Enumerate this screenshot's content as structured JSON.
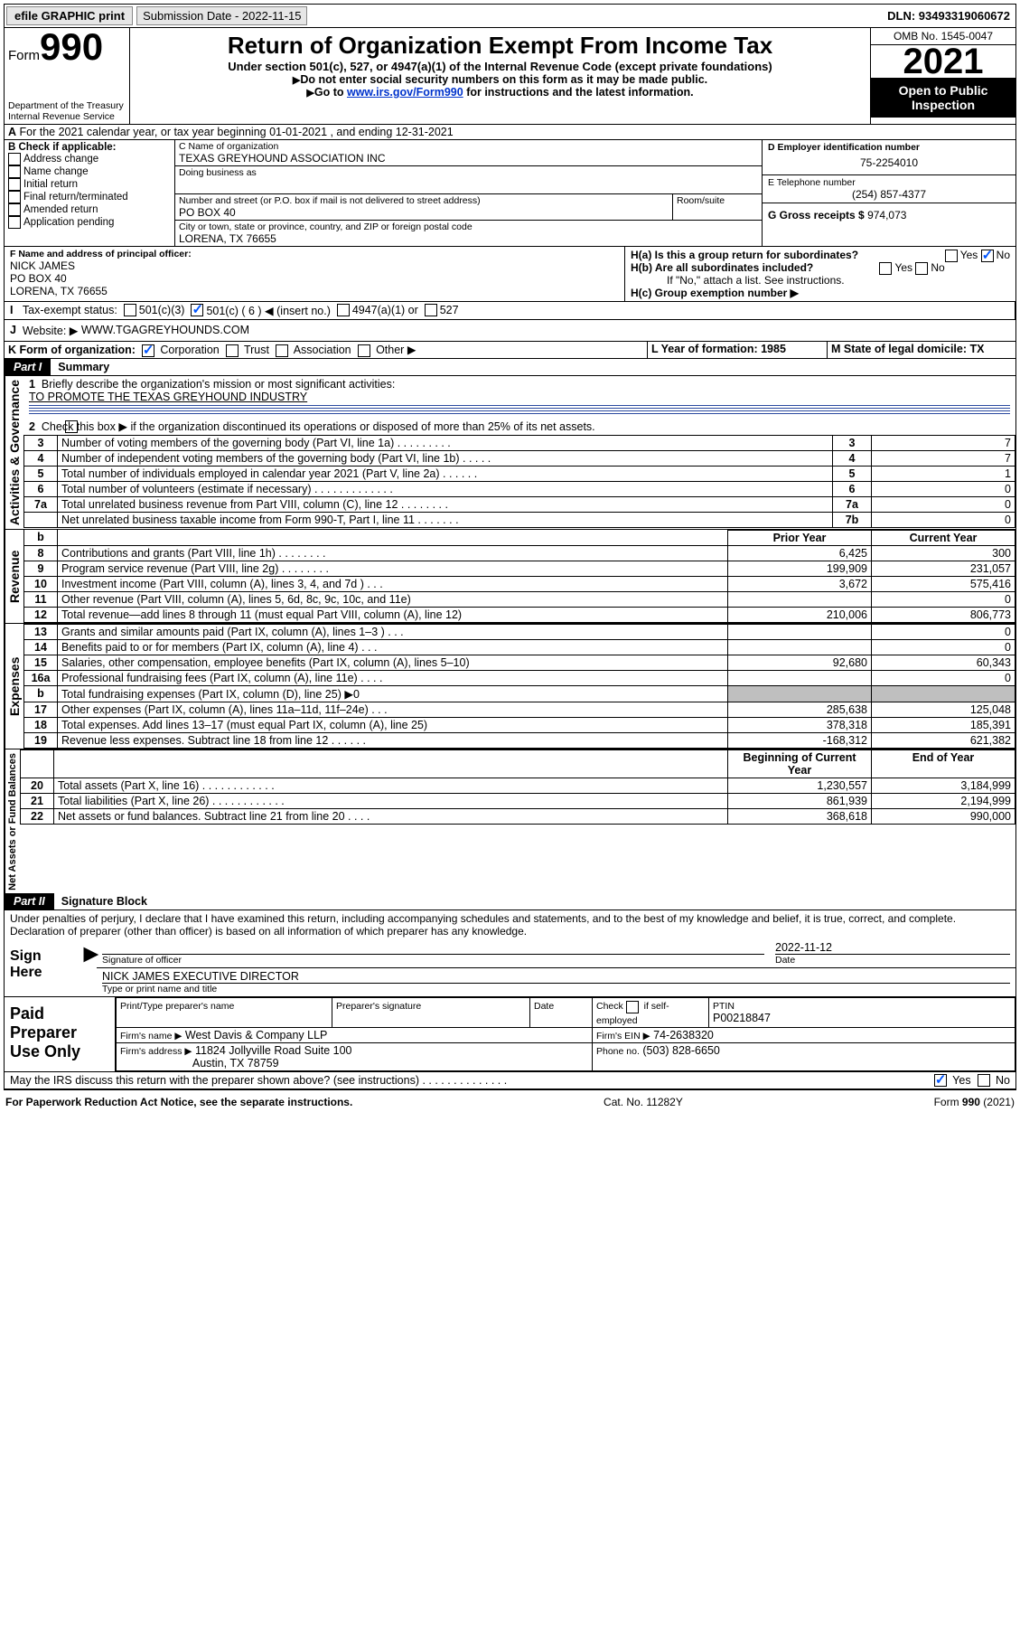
{
  "topbar": {
    "efile": "efile GRAPHIC print",
    "subdate_lbl": "Submission Date - 2022-11-15",
    "dln": "DLN: 93493319060672"
  },
  "head": {
    "form": "Form",
    "num": "990",
    "title": "Return of Organization Exempt From Income Tax",
    "sub": "Under section 501(c), 527, or 4947(a)(1) of the Internal Revenue Code (except private foundations)",
    "note1": "Do not enter social security numbers on this form as it may be made public.",
    "note2_a": "Go to ",
    "note2_link": "www.irs.gov/Form990",
    "note2_b": " for instructions and the latest information.",
    "dept": "Department of the Treasury",
    "irs": "Internal Revenue Service",
    "omb": "OMB No. 1545-0047",
    "year": "2021",
    "open": "Open to Public Inspection"
  },
  "A": {
    "line": "For the 2021 calendar year, or tax year beginning 01-01-2021    , and ending 12-31-2021"
  },
  "B": {
    "hdr": "B Check if applicable:",
    "items": [
      "Address change",
      "Name change",
      "Initial return",
      "Final return/terminated",
      "Amended return",
      "Application pending"
    ]
  },
  "C": {
    "name_lbl": "C Name of organization",
    "name": "TEXAS GREYHOUND ASSOCIATION INC",
    "dba_lbl": "Doing business as",
    "dba": "",
    "addr_lbl": "Number and street (or P.O. box if mail is not delivered to street address)",
    "room_lbl": "Room/suite",
    "addr": "PO BOX 40",
    "city_lbl": "City or town, state or province, country, and ZIP or foreign postal code",
    "city": "LORENA, TX  76655"
  },
  "D": {
    "lbl": "D Employer identification number",
    "val": "75-2254010"
  },
  "E": {
    "lbl": "E Telephone number",
    "val": "(254) 857-4377"
  },
  "G": {
    "lbl": "G Gross receipts $",
    "val": "974,073"
  },
  "F": {
    "lbl": "F  Name and address of principal officer:",
    "name": "NICK JAMES",
    "addr1": "PO BOX 40",
    "addr2": "LORENA, TX  76655"
  },
  "H": {
    "a": "H(a)  Is this a group return for subordinates?",
    "b": "H(b)  Are all subordinates included?",
    "bnote": "If \"No,\" attach a list. See instructions.",
    "c": "H(c)  Group exemption number ▶",
    "yes": "Yes",
    "no": "No"
  },
  "I": {
    "lbl": "Tax-exempt status:",
    "opts": [
      "501(c)(3)",
      "501(c) ( 6 ) ◀ (insert no.)",
      "4947(a)(1) or",
      "527"
    ]
  },
  "J": {
    "lbl": "Website: ▶",
    "val": "WWW.TGAGREYHOUNDS.COM"
  },
  "K": {
    "lbl": "K Form of organization:",
    "opts": [
      "Corporation",
      "Trust",
      "Association",
      "Other ▶"
    ]
  },
  "L": {
    "lbl": "L Year of formation: 1985"
  },
  "M": {
    "lbl": "M State of legal domicile: TX"
  },
  "part1": {
    "tab": "Part I",
    "title": "Summary"
  },
  "q1": {
    "lbl": "Briefly describe the organization's mission or most significant activities:",
    "val": "TO PROMOTE THE TEXAS GREYHOUND INDUSTRY"
  },
  "q2": "Check this box ▶          if the organization discontinued its operations or disposed of more than 25% of its net assets.",
  "govlines": [
    {
      "n": "3",
      "t": "Number of voting members of the governing body (Part VI, line 1a)   .    .    .    .    .    .    .    .    .",
      "k": "3",
      "v": "7"
    },
    {
      "n": "4",
      "t": "Number of independent voting members of the governing body (Part VI, line 1b)    .    .    .    .    .",
      "k": "4",
      "v": "7"
    },
    {
      "n": "5",
      "t": "Total number of individuals employed in calendar year 2021 (Part V, line 2a)   .    .    .    .    .    .",
      "k": "5",
      "v": "1"
    },
    {
      "n": "6",
      "t": "Total number of volunteers (estimate if necessary)   .    .    .    .    .    .    .    .    .    .    .    .    .",
      "k": "6",
      "v": "0"
    },
    {
      "n": "7a",
      "t": "Total unrelated business revenue from Part VIII, column (C), line 12   .    .    .    .    .    .    .    .",
      "k": "7a",
      "v": "0"
    },
    {
      "n": "",
      "t": "Net unrelated business taxable income from Form 990-T, Part I, line 11   .    .    .    .    .    .    .",
      "k": "7b",
      "v": "0"
    }
  ],
  "colhdr": {
    "prior": "Prior Year",
    "curr": "Current Year"
  },
  "revenue": [
    {
      "n": "8",
      "t": "Contributions and grants (Part VIII, line 1h)    .    .    .    .    .    .    .    .",
      "p": "6,425",
      "c": "300"
    },
    {
      "n": "9",
      "t": "Program service revenue (Part VIII, line 2g)   .    .    .    .    .    .    .    .",
      "p": "199,909",
      "c": "231,057"
    },
    {
      "n": "10",
      "t": "Investment income (Part VIII, column (A), lines 3, 4, and 7d )   .    .    .",
      "p": "3,672",
      "c": "575,416"
    },
    {
      "n": "11",
      "t": "Other revenue (Part VIII, column (A), lines 5, 6d, 8c, 9c, 10c, and 11e)",
      "p": "",
      "c": "0"
    },
    {
      "n": "12",
      "t": "Total revenue—add lines 8 through 11 (must equal Part VIII, column (A), line 12)",
      "p": "210,006",
      "c": "806,773"
    }
  ],
  "expenses": [
    {
      "n": "13",
      "t": "Grants and similar amounts paid (Part IX, column (A), lines 1–3 )   .    .    .",
      "p": "",
      "c": "0"
    },
    {
      "n": "14",
      "t": "Benefits paid to or for members (Part IX, column (A), line 4)   .    .    .",
      "p": "",
      "c": "0"
    },
    {
      "n": "15",
      "t": "Salaries, other compensation, employee benefits (Part IX, column (A), lines 5–10)",
      "p": "92,680",
      "c": "60,343"
    },
    {
      "n": "16a",
      "t": "Professional fundraising fees (Part IX, column (A), line 11e)   .    .    .    .",
      "p": "",
      "c": "0"
    },
    {
      "n": "b",
      "t": "Total fundraising expenses (Part IX, column (D), line 25) ▶0",
      "p": "GREY",
      "c": "GREY"
    },
    {
      "n": "17",
      "t": "Other expenses (Part IX, column (A), lines 11a–11d, 11f–24e)   .    .    .",
      "p": "285,638",
      "c": "125,048"
    },
    {
      "n": "18",
      "t": "Total expenses. Add lines 13–17 (must equal Part IX, column (A), line 25)",
      "p": "378,318",
      "c": "185,391"
    },
    {
      "n": "19",
      "t": "Revenue less expenses. Subtract line 18 from line 12   .    .    .    .    .    .",
      "p": "-168,312",
      "c": "621,382"
    }
  ],
  "netcol": {
    "beg": "Beginning of Current Year",
    "end": "End of Year"
  },
  "net": [
    {
      "n": "20",
      "t": "Total assets (Part X, line 16)   .    .    .    .    .    .    .    .    .    .    .    .",
      "p": "1,230,557",
      "c": "3,184,999"
    },
    {
      "n": "21",
      "t": "Total liabilities (Part X, line 26)  .    .    .    .    .    .    .    .    .    .    .    .",
      "p": "861,939",
      "c": "2,194,999"
    },
    {
      "n": "22",
      "t": "Net assets or fund balances. Subtract line 21 from line 20   .    .    .    .",
      "p": "368,618",
      "c": "990,000"
    }
  ],
  "part2": {
    "tab": "Part II",
    "title": "Signature Block"
  },
  "penalty": "Under penalties of perjury, I declare that I have examined this return, including accompanying schedules and statements, and to the best of my knowledge and belief, it is true, correct, and complete. Declaration of preparer (other than officer) is based on all information of which preparer has any knowledge.",
  "sign": {
    "here": "Sign Here",
    "sigoff": "Signature of officer",
    "date": "Date",
    "datev": "2022-11-12",
    "name": "NICK JAMES  EXECUTIVE DIRECTOR",
    "namelbl": "Type or print name and title"
  },
  "paid": {
    "hdr": "Paid Preparer Use Only",
    "c1": "Print/Type preparer's name",
    "c2": "Preparer's signature",
    "c3": "Date",
    "c4a": "Check",
    "c4b": "if self-employed",
    "ptin_lbl": "PTIN",
    "ptin": "P00218847",
    "firm_lbl": "Firm's name   ▶",
    "firm": "West Davis & Company LLP",
    "ein_lbl": "Firm's EIN ▶",
    "ein": "74-2638320",
    "addr_lbl": "Firm's address ▶",
    "addr1": "11824 Jollyville Road Suite 100",
    "addr2": "Austin, TX  78759",
    "phone_lbl": "Phone no.",
    "phone": "(503) 828-6650"
  },
  "discuss": "May the IRS discuss this return with the preparer shown above? (see instructions)   .    .    .    .    .    .    .    .    .    .    .    .    .    .",
  "foot": {
    "pra": "For Paperwork Reduction Act Notice, see the separate instructions.",
    "cat": "Cat. No. 11282Y",
    "form": "Form 990 (2021)"
  },
  "vtabs": {
    "gov": "Activities & Governance",
    "rev": "Revenue",
    "exp": "Expenses",
    "net": "Net Assets or Fund Balances"
  }
}
